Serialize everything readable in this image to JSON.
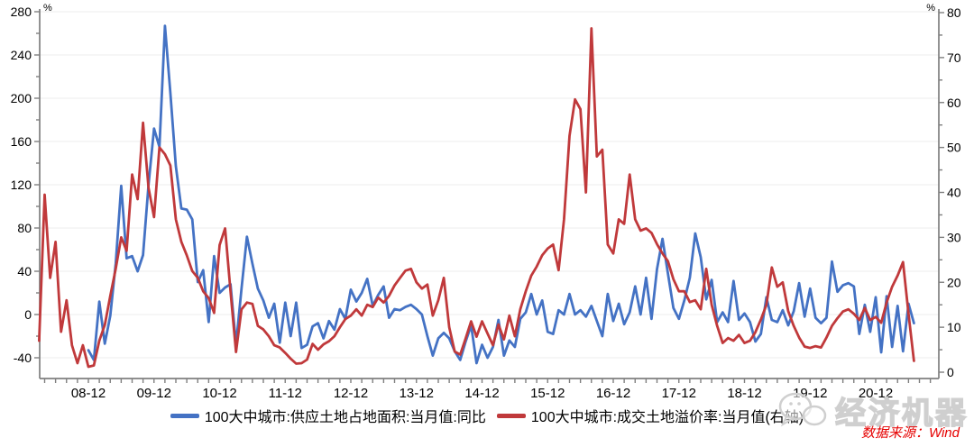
{
  "chart_data": {
    "type": "line",
    "title": "",
    "frequency": "monthly",
    "start_month": "2008-03",
    "left_axis": {
      "unit": "%",
      "min": -40,
      "max": 280,
      "tick_step": 40,
      "minor_step": 20,
      "tick_labels": [
        "-40",
        "0",
        "40",
        "80",
        "120",
        "160",
        "200",
        "240",
        "280"
      ]
    },
    "right_axis": {
      "unit": "%",
      "min": 0,
      "max": 80,
      "tick_step": 10,
      "minor_step": 5,
      "tick_labels": [
        "0",
        "10",
        "20",
        "30",
        "40",
        "50",
        "60",
        "70",
        "80"
      ]
    },
    "x_axis": {
      "tick_labels": [
        "08-12",
        "09-12",
        "10-12",
        "11-12",
        "12-12",
        "13-12",
        "14-12",
        "15-12",
        "16-12",
        "17-12",
        "18-12",
        "19-12",
        "20-12"
      ],
      "minor_tick_every_months": 2
    },
    "grid": "horizontal",
    "legend_position": "bottom-center",
    "colors": {
      "grid": "#ededed",
      "axis": "#7f7f7f",
      "label": "#000000"
    },
    "series": [
      {
        "id": "supply-land-area-yoy-line",
        "name": "100大中城市:供应土地占地面积:当月值:同比",
        "color": "#4472C4",
        "axis": "left",
        "values": [
          null,
          null,
          null,
          null,
          null,
          null,
          null,
          null,
          null,
          -33,
          -42,
          12,
          -27,
          -1,
          47,
          119,
          52,
          54,
          40,
          55,
          120,
          172,
          155,
          267,
          205,
          137,
          98,
          97,
          88,
          30,
          41,
          -7,
          54,
          20,
          25,
          28,
          -28,
          24,
          72,
          47,
          24,
          13,
          -3,
          10,
          -26,
          11,
          -20,
          11,
          -31,
          -28,
          -11,
          -8,
          -22,
          -6,
          -14,
          5,
          -4,
          23,
          12,
          20,
          33,
          8,
          18,
          26,
          -3,
          5,
          4,
          7,
          9,
          5,
          0,
          -20,
          -38,
          -22,
          -17,
          -22,
          -34,
          -42,
          -25,
          -10,
          -45,
          -28,
          -40,
          -30,
          -5,
          -38,
          -24,
          -30,
          -4,
          2,
          19,
          0,
          13,
          -16,
          -18,
          4,
          0,
          19,
          0,
          4,
          -2,
          8,
          -6,
          -20,
          19,
          -6,
          10,
          -9,
          2,
          26,
          0,
          34,
          -4,
          42,
          70,
          38,
          6,
          -4,
          13,
          34,
          75,
          53,
          14,
          32,
          -7,
          2,
          -7,
          31,
          -5,
          1,
          -7,
          -25,
          -18,
          16,
          -5,
          -7,
          4,
          -10,
          3,
          29,
          -2,
          24,
          -3,
          -8,
          -3,
          49,
          21,
          27,
          29,
          26,
          -18,
          9,
          -16,
          16,
          -35,
          17,
          -30,
          8,
          -34,
          10,
          -8
        ]
      },
      {
        "id": "land-premium-rate-line",
        "name": "100大中城市:成交土地溢价率:当月值(右轴)",
        "color": "#C0393B",
        "axis": "right",
        "values": [
          7,
          39.5,
          21,
          29,
          9,
          16,
          6,
          2,
          6,
          1.2,
          1.5,
          7,
          10.5,
          17,
          23,
          30,
          27,
          44,
          38.5,
          55.5,
          41,
          34.5,
          50,
          48.5,
          46,
          34,
          29,
          26,
          22.5,
          21,
          18,
          16.5,
          13.2,
          28.3,
          32,
          18,
          4.5,
          14,
          15.5,
          15.2,
          10.3,
          9.5,
          8,
          6,
          5.5,
          4.3,
          3,
          1.9,
          2,
          2.8,
          6.3,
          5,
          6.2,
          6.9,
          8,
          10,
          11.8,
          12.6,
          14,
          12.6,
          15,
          14.5,
          16.6,
          15.5,
          17,
          19.3,
          21,
          22.6,
          23,
          20,
          18.6,
          19.5,
          12.6,
          16,
          21,
          10,
          4.6,
          3.9,
          7.5,
          11.3,
          7.9,
          11.3,
          8.6,
          6,
          10.6,
          7.3,
          12.6,
          8,
          14,
          18,
          21.5,
          23.5,
          26,
          27.5,
          28.4,
          22.7,
          34,
          52.6,
          60.7,
          58.5,
          40,
          76.5,
          48,
          49.5,
          28.4,
          26.4,
          34,
          33,
          44,
          34,
          31.5,
          32,
          31,
          28.5,
          26.4,
          24.7,
          20.7,
          18,
          18,
          15.6,
          16,
          14,
          23,
          15,
          10.3,
          6.5,
          7.6,
          7,
          8.3,
          6.5,
          7,
          8.9,
          11.7,
          15,
          23.3,
          19,
          20,
          13.6,
          10.3,
          7.7,
          5.7,
          5.4,
          5.8,
          5.5,
          7.7,
          10.3,
          12,
          13.5,
          14,
          13,
          11.6,
          14.3,
          11.6,
          12.3,
          11,
          15.5,
          19,
          21.5,
          24.5,
          13,
          2.5
        ]
      }
    ]
  },
  "legend": {
    "items": [
      {
        "label": "100大中城市:供应土地占地面积:当月值:同比",
        "color": "#4472C4"
      },
      {
        "label": "100大中城市:成交土地溢价率:当月值(右轴)",
        "color": "#C0393B"
      }
    ]
  },
  "watermark": {
    "text": "经济机器",
    "icon": "wechat-logo-icon"
  },
  "footer": {
    "source": "数据来源：Wind"
  }
}
